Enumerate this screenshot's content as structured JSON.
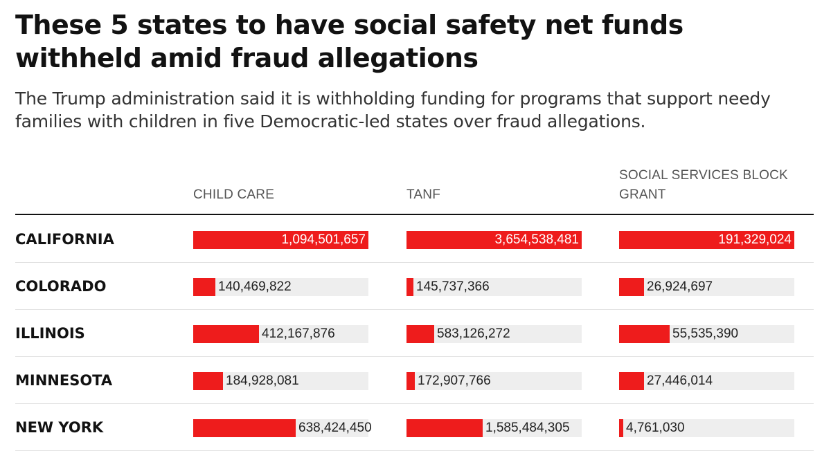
{
  "title": "These 5 states to have social safety net funds withheld amid fraud allegations",
  "subtitle": "The Trump administration said it is withholding funding for programs that support needy families with children in five Democratic-led states over fraud allegations.",
  "colors": {
    "bar": "#ee1c1c",
    "track": "#eeeeee"
  },
  "chart_data": {
    "type": "table",
    "title": "These 5 states to have social safety net funds withheld amid fraud allegations",
    "columns": [
      "CHILD CARE",
      "TANF",
      "SOCIAL SERVICES BLOCK GRANT"
    ],
    "rows": [
      {
        "state": "CALIFORNIA",
        "values": [
          1094501657,
          3654538481,
          191329024
        ],
        "labels": [
          "1,094,501,657",
          "3,654,538,481",
          "191,329,024"
        ]
      },
      {
        "state": "COLORADO",
        "values": [
          140469822,
          145737366,
          26924697
        ],
        "labels": [
          "140,469,822",
          "145,737,366",
          "26,924,697"
        ]
      },
      {
        "state": "ILLINOIS",
        "values": [
          412167876,
          583126272,
          55535390
        ],
        "labels": [
          "412,167,876",
          "583,126,272",
          "55,535,390"
        ]
      },
      {
        "state": "MINNESOTA",
        "values": [
          184928081,
          172907766,
          27446014
        ],
        "labels": [
          "184,928,081",
          "172,907,766",
          "27,446,014"
        ]
      },
      {
        "state": "NEW YORK",
        "values": [
          638424450,
          1585484305,
          4761030
        ],
        "labels": [
          "638,424,450",
          "1,585,484,305",
          "4,761,030"
        ]
      }
    ]
  }
}
